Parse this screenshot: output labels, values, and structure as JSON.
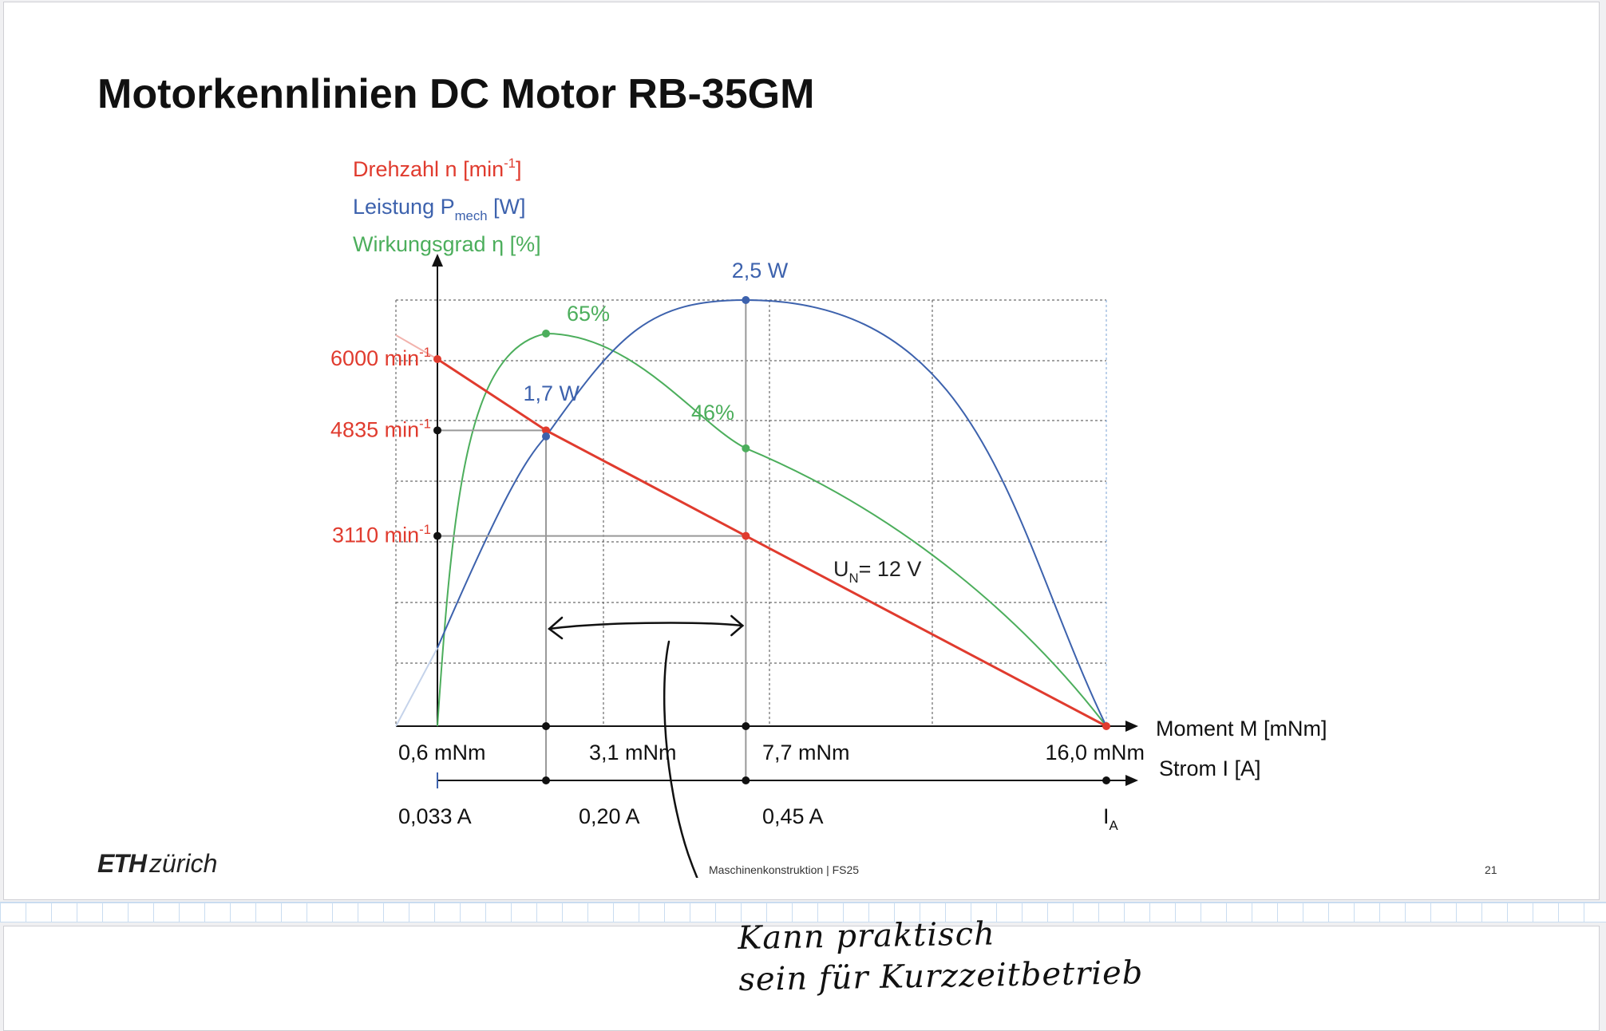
{
  "slide": {
    "title": "Motorkennlinien DC Motor RB-35GM",
    "footer": "Maschinenkonstruktion | FS25",
    "page_number": "21",
    "logo": {
      "bold": "ETH",
      "rest": "zürich"
    }
  },
  "handwritten_note": {
    "line1": "Kann praktisch",
    "line2": "sein für Kurzzeitbetrieb"
  },
  "chart_data": {
    "type": "line",
    "x_axis": {
      "label": "Moment M [mNm]",
      "range": [
        0,
        16.0
      ]
    },
    "current_axis": {
      "label": "Strom I [A]"
    },
    "y_legend": [
      {
        "text": "Drehzahl n [min",
        "sup": "-1",
        "tail": "]",
        "color": "#e03b2e"
      },
      {
        "text": "Leistung P",
        "sub": "mech",
        "tail": " [W]",
        "color": "#3d62ad"
      },
      {
        "text": "Wirkungsgrad η [%]",
        "color": "#4cae5c"
      }
    ],
    "colors": {
      "speed": "#e03b2e",
      "power": "#3d62ad",
      "efficiency": "#4cae5c"
    },
    "speed_line": {
      "points": [
        [
          0.6,
          6000
        ],
        [
          3.1,
          4835
        ],
        [
          7.7,
          3110
        ],
        [
          16.0,
          0
        ]
      ],
      "label": "U",
      "label_sub": "N",
      "label_tail": "= 12 V"
    },
    "power_curve": {
      "peak_x": 7.7,
      "peak_value": 2.5
    },
    "efficiency_curve": {
      "peak_x": 3.1,
      "peak_value": 65
    },
    "speed_labels": [
      {
        "value": 6000,
        "text": "6000 min",
        "sup": "-1"
      },
      {
        "value": 4835,
        "text": "4835 min",
        "sup": "-1"
      },
      {
        "value": 3110,
        "text": "3110 min",
        "sup": "-1"
      }
    ],
    "point_labels": [
      {
        "text": "2,5 W",
        "series": "power",
        "x": 7.7,
        "value": 2.5
      },
      {
        "text": "1,7 W",
        "series": "power",
        "x": 3.1,
        "value": 1.7
      },
      {
        "text": "65%",
        "series": "efficiency",
        "x": 3.1,
        "value": 65
      },
      {
        "text": "46%",
        "series": "efficiency",
        "x": 7.7,
        "value": 46
      }
    ],
    "torque_labels": [
      {
        "text": "0,6 mNm",
        "x": 0.6
      },
      {
        "text": "3,1 mNm",
        "x": 3.1
      },
      {
        "text": "7,7 mNm",
        "x": 7.7
      },
      {
        "text": "16,0 mNm",
        "x": 16.0
      }
    ],
    "current_labels": [
      {
        "text": "0,033 A",
        "x": 0.6
      },
      {
        "text": "0,20 A",
        "x": 3.1
      },
      {
        "text": "0,45 A",
        "x": 7.7
      },
      {
        "text": "I",
        "sub": "A",
        "x": 16.0
      }
    ],
    "operating_range": [
      3.1,
      7.7
    ],
    "grid": true
  }
}
